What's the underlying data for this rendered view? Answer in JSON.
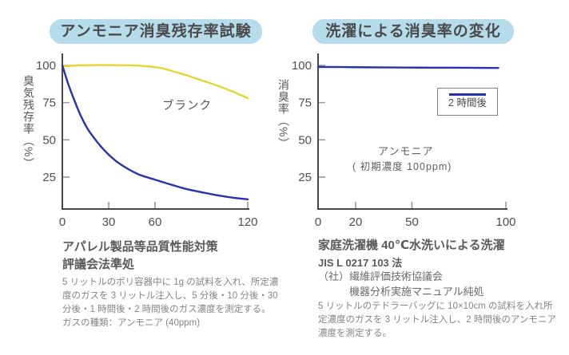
{
  "colors": {
    "pill_background": "#b5dcea",
    "blue_line": "#2733ad",
    "yellow_line": "#e8d531",
    "axis": "#474747",
    "tick": "#9a9a9a"
  },
  "left_panel": {
    "caption_heading": "アパレル製品等品質性能対策\n評議会法準処",
    "caption_body": "5 リットルのポリ容器中に 1g の試料を入れ、所定濃\n度のガスを 3 リットル注入し、5 分後・10 分後・30\n分後・1 時間後・2 時間後のガス濃度を測定する。\nガスの種類：アンモニア (40ppm)"
  },
  "right_panel": {
    "caption_heading": "家庭洗濯機 40℃水洗いによる洗濯",
    "caption_standard": "JIS L 0217 103 法",
    "caption_org": "（社）繊維評価技術協議会\n　　　機器分析実施マニュアル純処",
    "caption_body": "5 リットルのテドラーバッグに 10×10cm の試料を入れ所\n定濃度のガスを 3 リットル注入し、2 時間後のアンモニア\n濃度を測定する。"
  },
  "chart_data": [
    {
      "type": "line",
      "title": "アンモニア消臭残存率試験",
      "xlabel": "",
      "ylabel": "臭気残存率（%）",
      "xlim": [
        0,
        120
      ],
      "ylim": [
        0,
        105
      ],
      "x_ticks": [
        0,
        30,
        60,
        120
      ],
      "y_ticks": [
        100,
        75,
        50,
        25
      ],
      "grid": false,
      "legend_position": "none",
      "series": [
        {
          "name": "ブランク",
          "color": "#e8d531",
          "x": [
            0,
            10,
            20,
            30,
            40,
            50,
            55,
            60,
            65,
            70,
            80,
            90,
            100,
            110,
            120
          ],
          "y": [
            99.4,
            100,
            100.2,
            100.2,
            100.1,
            99.8,
            99.4,
            98.8,
            98,
            96.5,
            93.5,
            90,
            86.5,
            82.5,
            78
          ]
        },
        {
          "name": "",
          "color": "#2733ad",
          "x": [
            0,
            4,
            8,
            12,
            16,
            20,
            25,
            30,
            35,
            40,
            45,
            50,
            55,
            60,
            70,
            80,
            90,
            100,
            110,
            120
          ],
          "y": [
            100,
            87,
            76,
            66,
            58,
            52,
            45.5,
            40,
            35.5,
            32,
            29,
            26.5,
            24.8,
            23.2,
            20,
            17,
            14.8,
            12.8,
            11.2,
            10
          ]
        }
      ]
    },
    {
      "type": "line",
      "title": "洗濯による消臭率の変化",
      "xlabel": "",
      "ylabel": "消臭率（%）",
      "xlim": [
        0,
        100
      ],
      "ylim": [
        0,
        105
      ],
      "x_ticks": [
        0,
        20,
        50,
        100
      ],
      "y_ticks": [
        100,
        75,
        50,
        25
      ],
      "grid": false,
      "legend_position": "inside-right",
      "annotations": [
        "アンモニア",
        "( 初期濃度 100ppm)"
      ],
      "series": [
        {
          "name": "2 時間後",
          "color": "#2733ad",
          "x": [
            0,
            20,
            40,
            60,
            80,
            96
          ],
          "y": [
            99,
            98.8,
            98.6,
            98.5,
            98.4,
            98.3
          ]
        }
      ]
    }
  ]
}
